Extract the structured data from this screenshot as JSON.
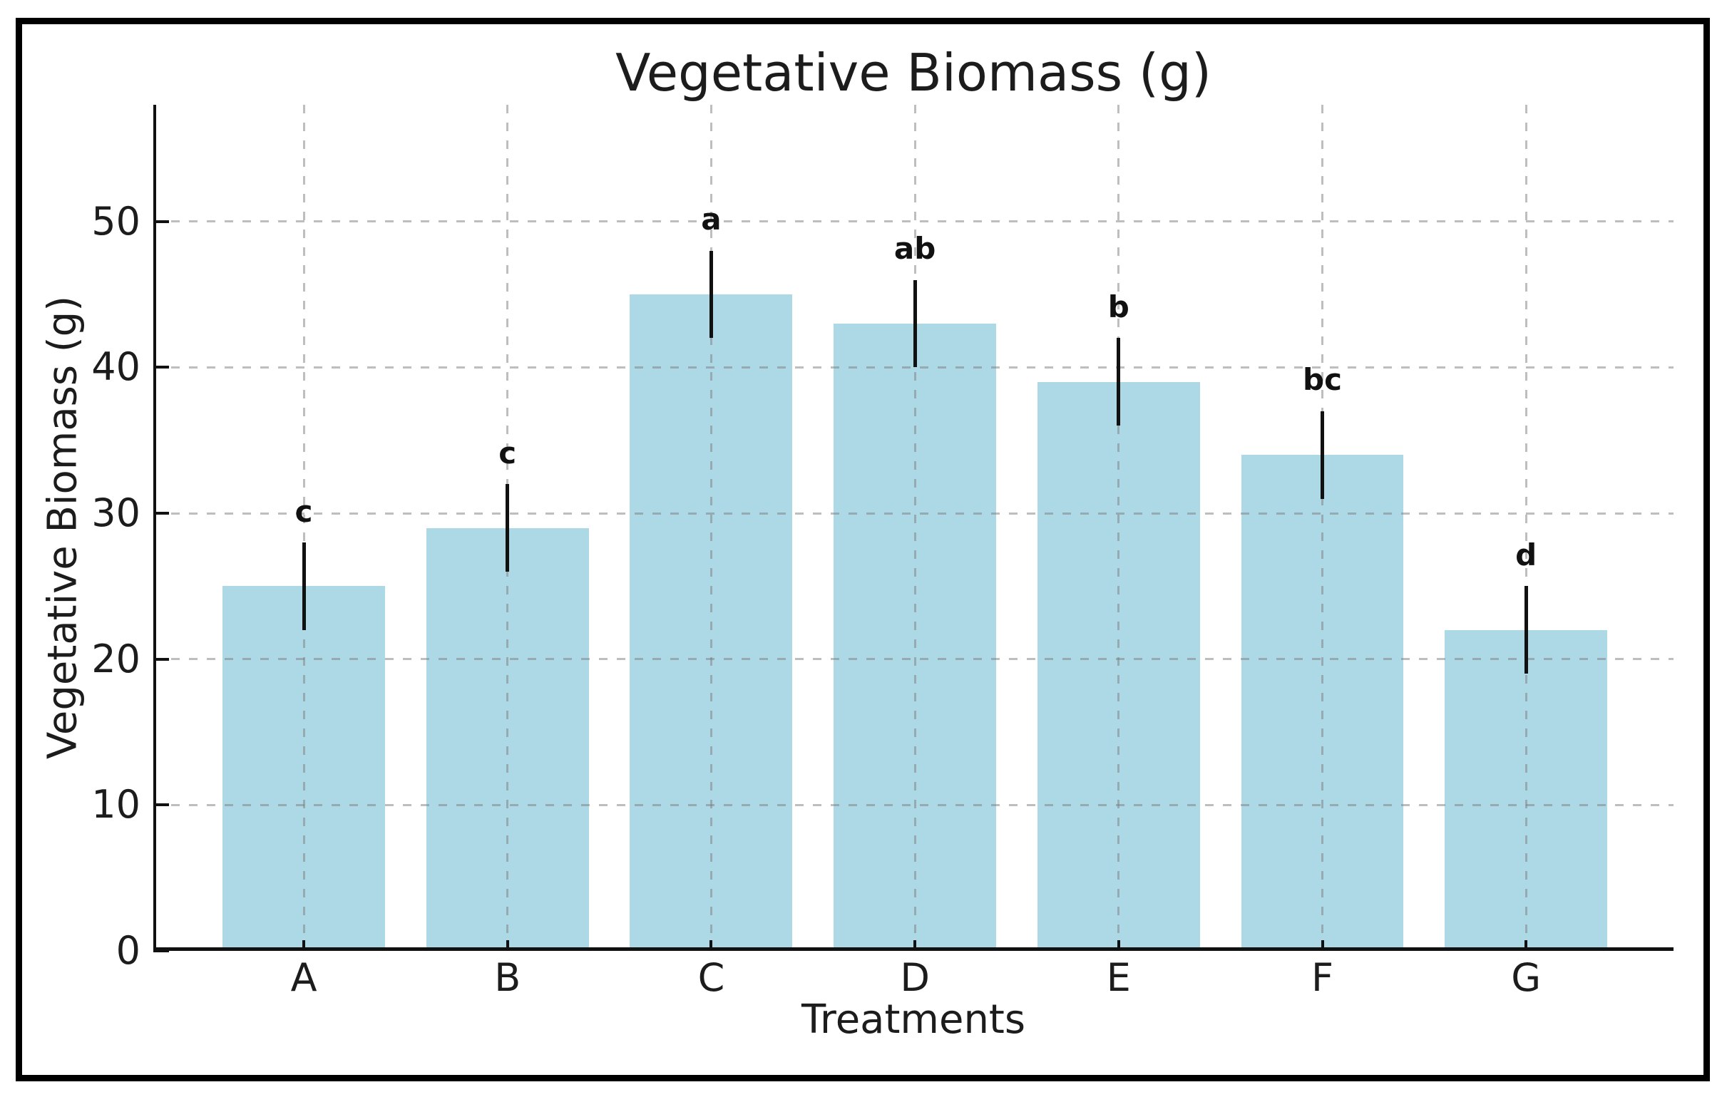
{
  "figure": {
    "title": "Vegetative Biomass (g)",
    "x_axis_label": "Treatments",
    "y_axis_label": "Vegetative Biomass (g)"
  },
  "chart_data": {
    "type": "bar",
    "title": "Vegetative Biomass (g)",
    "xlabel": "Treatments",
    "ylabel": "Vegetative Biomass (g)",
    "categories": [
      "A",
      "B",
      "C",
      "D",
      "E",
      "F",
      "G"
    ],
    "values": [
      25,
      29,
      45,
      43,
      39,
      34,
      22
    ],
    "error_bars": [
      3,
      3,
      3,
      3,
      3,
      3,
      3
    ],
    "significance_letters": [
      "c",
      "c",
      "a",
      "ab",
      "b",
      "bc",
      "d"
    ],
    "y_ticks": [
      0,
      10,
      20,
      30,
      40,
      50
    ],
    "ylim": [
      0,
      58
    ],
    "grid": "dashed, both axes, drawn over bars",
    "legend_position": "none",
    "bar_color": "#ADD8E6",
    "error_bar_color": "#111111",
    "axis_color": "#111111",
    "grid_color": "#7d7d7d"
  }
}
